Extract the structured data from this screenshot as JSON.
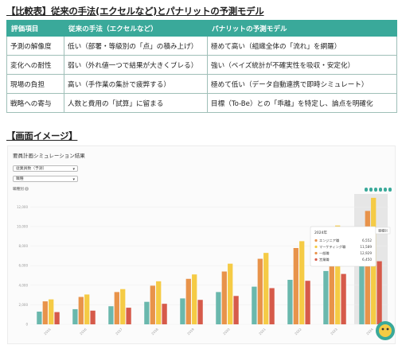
{
  "section1_title": "【比較表】従来の手法(エクセルなど)とパナリットの予測モデル",
  "section2_title": "【画面イメージ】",
  "table": {
    "headers": [
      "評価項目",
      "従来の手法（エクセルなど）",
      "パナリットの予測モデル"
    ],
    "rows": [
      [
        "予測の解像度",
        "低い（部署・等級別の「点」の積み上げ）",
        "極めて高い（組織全体の「流れ」を網羅）"
      ],
      [
        "変化への耐性",
        "弱い（外れ値一つで結果が大きくブレる）",
        "強い（ベイズ統計が不確実性を吸収・安定化）"
      ],
      [
        "現場の負担",
        "高い（手作業の集計で疲弊する）",
        "極めて低い（データ自動連携で即時シミュレート）"
      ],
      [
        "戦略への寄与",
        "人数と費用の「試算」に留まる",
        "目標（To-Be）との「乖離」を特定し、論点を明確化"
      ]
    ]
  },
  "screenshot": {
    "title": "要員計画シミュレーション結果",
    "select1": "従業員数（予測）",
    "select2": "職種",
    "y_axis_label": "職種別",
    "tooltip": {
      "title": "2024年",
      "rows": [
        {
          "label": "エンジニア職",
          "value": "6,552",
          "color": "#e8934a"
        },
        {
          "label": "マーケティング職",
          "value": "11,589",
          "color": "#f5cb45"
        },
        {
          "label": "一般職",
          "value": "12,929",
          "color": "#e8934a"
        },
        {
          "label": "営業職",
          "value": "6,450",
          "color": "#d65a4a"
        }
      ]
    },
    "hover_label": "職種別"
  },
  "chart_data": {
    "type": "bar",
    "y_ticks": [
      "12,000",
      "10,000",
      "8,000",
      "6,000",
      "4,000",
      "2,000",
      "0"
    ],
    "ylim": [
      0,
      13000
    ],
    "categories": [
      "2015",
      "2016",
      "2017",
      "2018",
      "2019",
      "2020",
      "2021",
      "2022",
      "2023",
      "2024"
    ],
    "series": [
      {
        "color": "#6ab8ad",
        "values": [
          1300,
          1550,
          1850,
          2300,
          2650,
          3300,
          3850,
          4550,
          5450,
          6550
        ]
      },
      {
        "color": "#e8934a",
        "values": [
          2350,
          2800,
          3300,
          3950,
          4650,
          5400,
          6700,
          7800,
          9000,
          11590
        ]
      },
      {
        "color": "#f5cb45",
        "values": [
          2550,
          3050,
          3600,
          4400,
          5100,
          6200,
          7300,
          8500,
          10100,
          12930
        ]
      },
      {
        "color": "#d65a4a",
        "values": [
          1250,
          1400,
          1700,
          2100,
          2500,
          2900,
          3700,
          4450,
          5150,
          6450
        ]
      }
    ]
  },
  "colors": {
    "accent": "#3aa99a",
    "highlight": "#e6e6e6"
  }
}
